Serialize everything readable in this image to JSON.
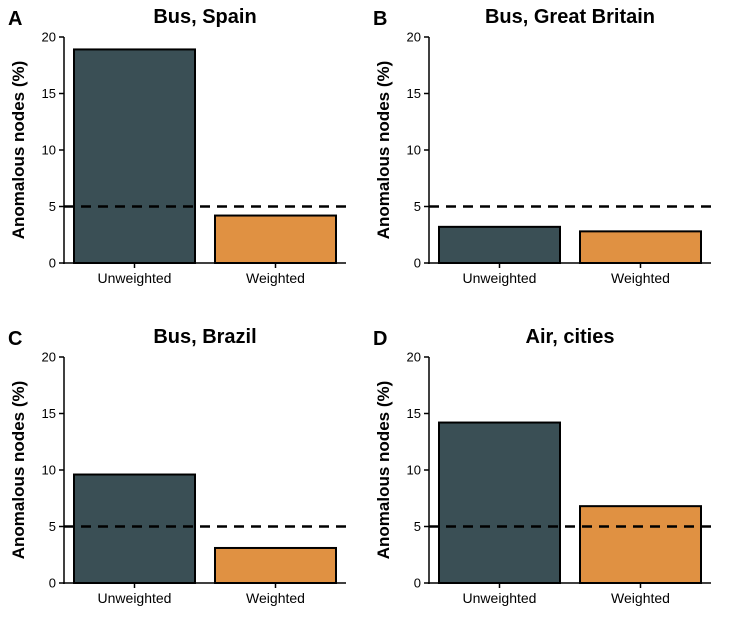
{
  "chart_data": [
    {
      "panel": "A",
      "type": "bar",
      "title": "Bus, Spain",
      "ylabel": "Anomalous nodes (%)",
      "categories": [
        "Unweighted",
        "Weighted"
      ],
      "values": [
        18.9,
        4.2
      ],
      "ylim": [
        0,
        20
      ],
      "yticks": [
        0,
        5,
        10,
        15,
        20
      ],
      "reference_line": 5,
      "colors": [
        "#3a4f55",
        "#e09142"
      ]
    },
    {
      "panel": "B",
      "type": "bar",
      "title": "Bus, Great Britain",
      "ylabel": "Anomalous nodes (%)",
      "categories": [
        "Unweighted",
        "Weighted"
      ],
      "values": [
        3.2,
        2.8
      ],
      "ylim": [
        0,
        20
      ],
      "yticks": [
        0,
        5,
        10,
        15,
        20
      ],
      "reference_line": 5,
      "colors": [
        "#3a4f55",
        "#e09142"
      ]
    },
    {
      "panel": "C",
      "type": "bar",
      "title": "Bus, Brazil",
      "ylabel": "Anomalous nodes (%)",
      "categories": [
        "Unweighted",
        "Weighted"
      ],
      "values": [
        9.6,
        3.1
      ],
      "ylim": [
        0,
        20
      ],
      "yticks": [
        0,
        5,
        10,
        15,
        20
      ],
      "reference_line": 5,
      "colors": [
        "#3a4f55",
        "#e09142"
      ]
    },
    {
      "panel": "D",
      "type": "bar",
      "title": "Air, cities",
      "ylabel": "Anomalous nodes (%)",
      "categories": [
        "Unweighted",
        "Weighted"
      ],
      "values": [
        14.2,
        6.8
      ],
      "ylim": [
        0,
        20
      ],
      "yticks": [
        0,
        5,
        10,
        15,
        20
      ],
      "reference_line": 5,
      "colors": [
        "#3a4f55",
        "#e09142"
      ]
    }
  ]
}
